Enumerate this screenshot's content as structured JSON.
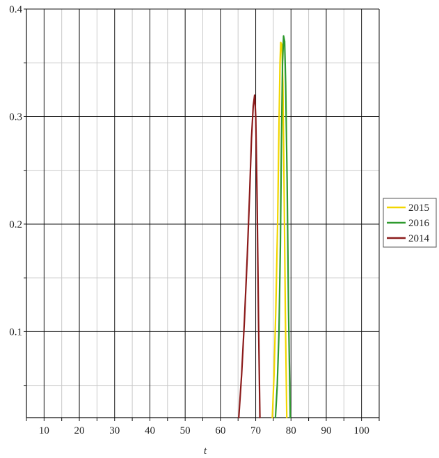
{
  "chart_data": {
    "type": "line",
    "title": "",
    "xlabel": "t",
    "ylabel": "",
    "xlim": [
      5,
      105
    ],
    "ylim": [
      0.02,
      0.4
    ],
    "x_ticks": [
      10,
      20,
      30,
      40,
      50,
      60,
      70,
      80,
      90,
      100
    ],
    "x_tick_labels": [
      "10",
      "20",
      "30",
      "40",
      "50",
      "60",
      "70",
      "80",
      "90",
      "100"
    ],
    "y_ticks": [
      0.1,
      0.2,
      0.3,
      0.4
    ],
    "y_tick_labels": [
      "0.1",
      "0.2",
      "0.3",
      "0.4"
    ],
    "grid": true,
    "legend_position": "right",
    "series": [
      {
        "name": "2015",
        "color": "#f2d600",
        "x": [
          74.7,
          75.2,
          75.7,
          76.2,
          76.6,
          76.9,
          77.1,
          77.4,
          77.7,
          78.0,
          78.4,
          78.8
        ],
        "y": [
          0.02,
          0.06,
          0.12,
          0.2,
          0.29,
          0.35,
          0.369,
          0.367,
          0.33,
          0.25,
          0.12,
          0.02
        ]
      },
      {
        "name": "2016",
        "color": "#2e9a2e",
        "x": [
          75.6,
          76.1,
          76.6,
          77.0,
          77.3,
          77.6,
          77.9,
          78.2,
          78.5,
          78.9,
          79.3,
          79.8
        ],
        "y": [
          0.02,
          0.05,
          0.1,
          0.18,
          0.28,
          0.35,
          0.375,
          0.37,
          0.33,
          0.24,
          0.12,
          0.02
        ]
      },
      {
        "name": "2014",
        "color": "#8b1a1a",
        "x": [
          65.2,
          66.0,
          66.8,
          67.6,
          68.3,
          68.8,
          69.3,
          69.7,
          70.0,
          70.4,
          70.8,
          71.2
        ],
        "y": [
          0.02,
          0.06,
          0.11,
          0.17,
          0.23,
          0.28,
          0.31,
          0.32,
          0.3,
          0.22,
          0.11,
          0.02
        ]
      }
    ]
  }
}
